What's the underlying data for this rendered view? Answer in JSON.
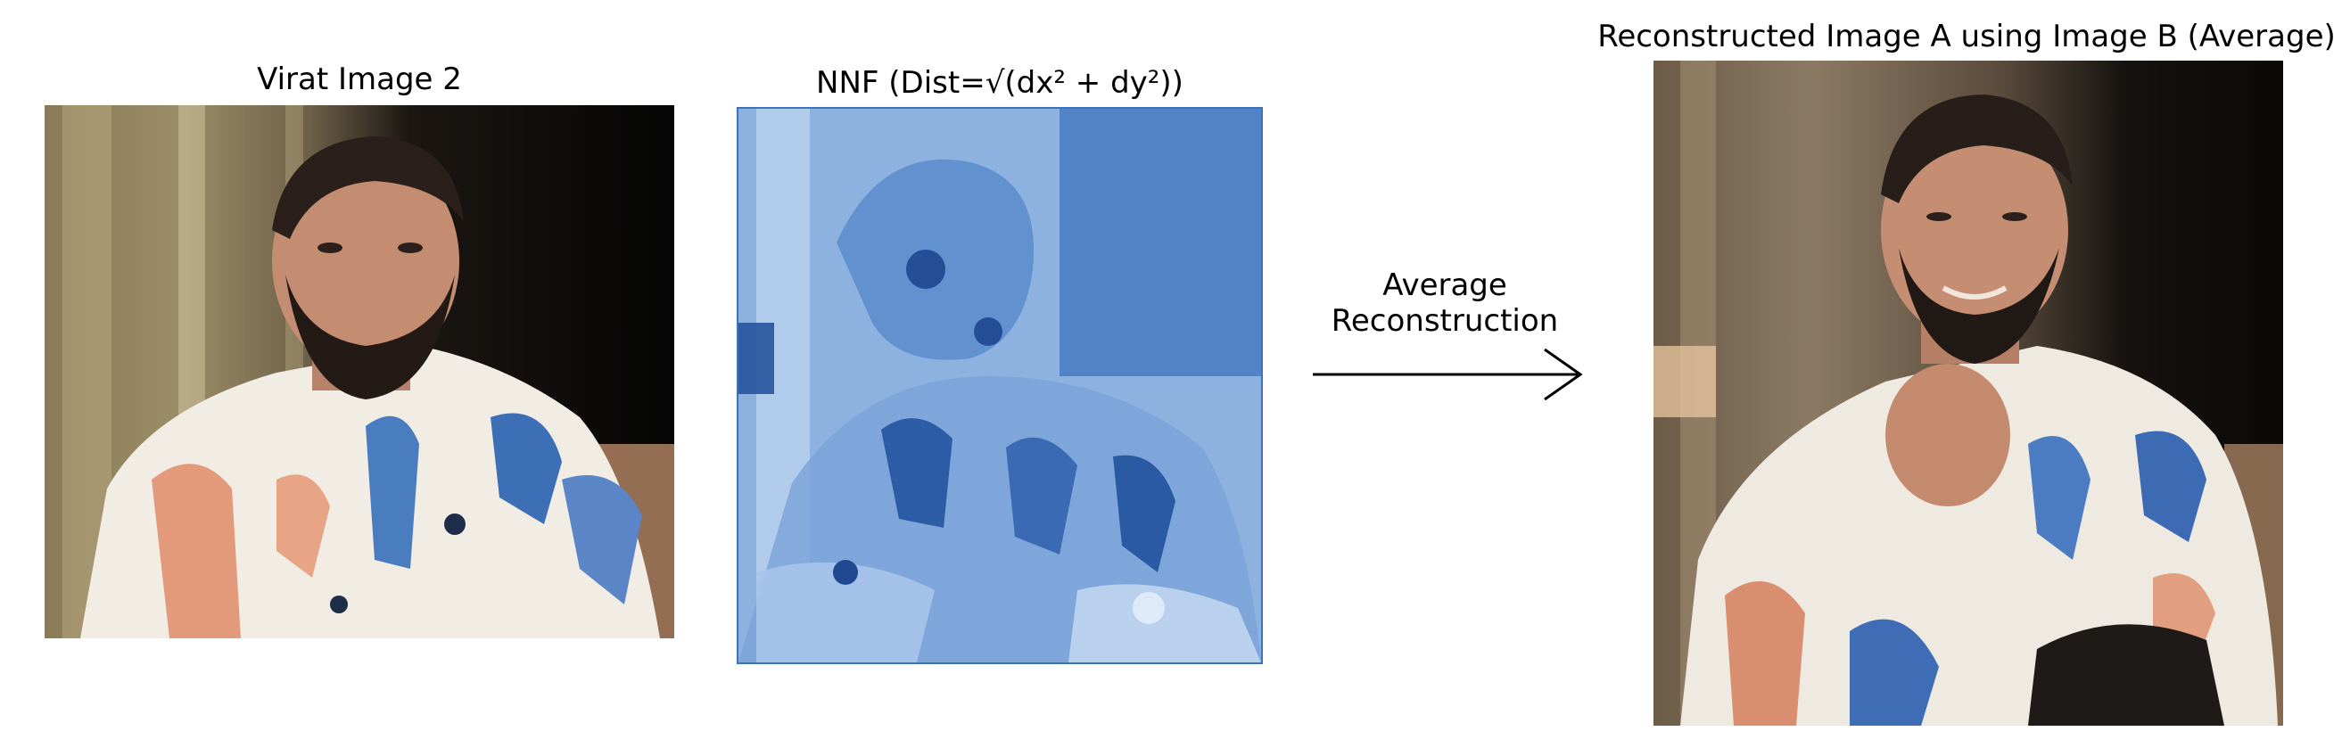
{
  "panels": [
    {
      "title": "Virat Image 2"
    },
    {
      "title": "NNF (Dist=√(dx² + dy²))"
    },
    {
      "title": "Reconstructed Image A using Image B (Average)"
    }
  ],
  "arrow": {
    "label_line1": "Average",
    "label_line2": "Reconstruction"
  },
  "colors": {
    "nnf_blue_light": "#b9d3ee",
    "nnf_blue_dark": "#2f5fa8",
    "background": "#ffffff"
  }
}
